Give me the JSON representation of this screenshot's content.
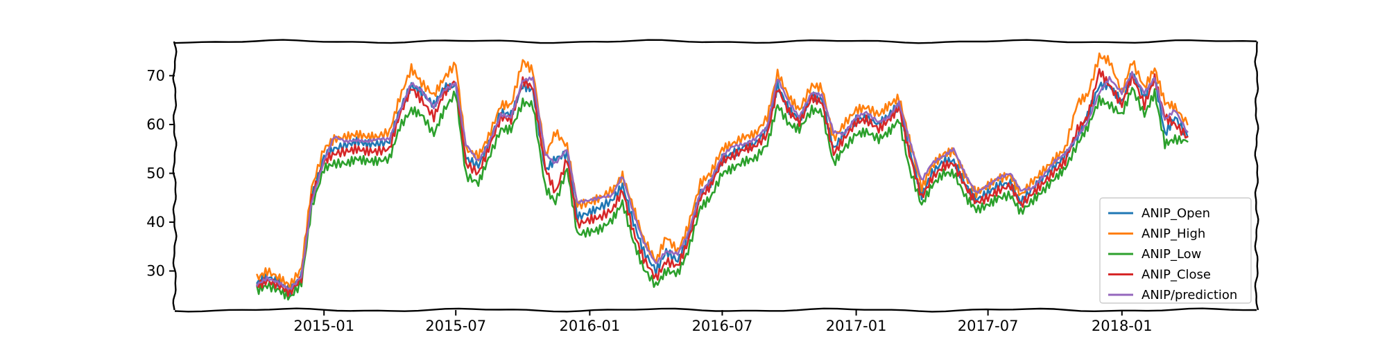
{
  "chart_data": {
    "type": "line",
    "title": "",
    "xlabel": "",
    "ylabel": "",
    "x_tick_labels": [
      "2015-01",
      "2015-07",
      "2016-01",
      "2016-07",
      "2017-01",
      "2017-07",
      "2018-01"
    ],
    "x_ticks": [
      "2015-01-01",
      "2015-07-01",
      "2016-01-01",
      "2016-07-01",
      "2017-01-01",
      "2017-07-01",
      "2018-01-01"
    ],
    "xlim": [
      "2014-06-10",
      "2018-07-05"
    ],
    "y_ticks": [
      30,
      40,
      50,
      60,
      70
    ],
    "ylim": [
      22,
      77
    ],
    "grid": false,
    "legend_position": "lower-right",
    "dates": [
      "2014-10-01",
      "2014-10-15",
      "2014-11-01",
      "2014-11-15",
      "2014-12-01",
      "2014-12-15",
      "2015-01-01",
      "2015-01-15",
      "2015-02-01",
      "2015-02-15",
      "2015-03-01",
      "2015-03-15",
      "2015-04-01",
      "2015-04-15",
      "2015-05-01",
      "2015-05-15",
      "2015-06-01",
      "2015-06-15",
      "2015-07-01",
      "2015-07-15",
      "2015-08-01",
      "2015-08-15",
      "2015-09-01",
      "2015-09-15",
      "2015-10-01",
      "2015-10-15",
      "2015-11-01",
      "2015-11-15",
      "2015-12-01",
      "2015-12-15",
      "2016-01-01",
      "2016-01-15",
      "2016-02-01",
      "2016-02-15",
      "2016-03-01",
      "2016-03-15",
      "2016-04-01",
      "2016-04-15",
      "2016-05-01",
      "2016-05-15",
      "2016-06-01",
      "2016-06-15",
      "2016-07-01",
      "2016-07-15",
      "2016-08-01",
      "2016-08-15",
      "2016-09-01",
      "2016-09-15",
      "2016-10-01",
      "2016-10-15",
      "2016-11-01",
      "2016-11-15",
      "2016-12-01",
      "2016-12-15",
      "2017-01-01",
      "2017-01-15",
      "2017-02-01",
      "2017-02-15",
      "2017-03-01",
      "2017-03-15",
      "2017-04-01",
      "2017-04-15",
      "2017-05-01",
      "2017-05-15",
      "2017-06-01",
      "2017-06-15",
      "2017-07-01",
      "2017-07-15",
      "2017-08-01",
      "2017-08-15",
      "2017-09-01",
      "2017-09-15",
      "2017-10-01",
      "2017-10-15",
      "2017-11-01",
      "2017-11-15",
      "2017-12-01",
      "2017-12-15",
      "2018-01-01",
      "2018-01-15",
      "2018-02-01",
      "2018-02-15",
      "2018-03-01",
      "2018-03-15",
      "2018-04-01"
    ],
    "series": [
      {
        "name": "ANIP_Open",
        "color": "#1f77b4",
        "values": [
          27.5,
          28.8,
          27.6,
          26.0,
          29.0,
          45.0,
          53.5,
          55.0,
          55.8,
          56.5,
          56.0,
          56.0,
          56.5,
          63.0,
          68.0,
          66.5,
          64.0,
          67.5,
          68.0,
          53.0,
          51.5,
          56.0,
          62.5,
          62.0,
          68.0,
          67.0,
          50.5,
          53.0,
          54.0,
          41.0,
          42.0,
          43.0,
          44.5,
          47.5,
          40.0,
          34.0,
          30.0,
          34.0,
          32.0,
          37.0,
          46.0,
          48.0,
          53.0,
          54.0,
          55.5,
          56.0,
          59.0,
          68.0,
          63.0,
          61.0,
          66.0,
          65.0,
          55.0,
          58.0,
          61.0,
          61.5,
          60.0,
          62.0,
          64.0,
          55.0,
          45.5,
          50.0,
          52.5,
          52.5,
          47.5,
          44.5,
          46.0,
          47.5,
          48.0,
          44.0,
          47.0,
          49.0,
          51.5,
          53.5,
          57.5,
          62.0,
          68.0,
          68.0,
          64.5,
          70.5,
          65.5,
          69.5,
          58.0,
          61.5,
          57.5
        ]
      },
      {
        "name": "ANIP_High",
        "color": "#ff7f0e",
        "values": [
          28.5,
          30.0,
          28.5,
          27.0,
          30.5,
          47.0,
          55.0,
          57.0,
          57.5,
          58.0,
          57.5,
          57.5,
          58.5,
          65.5,
          71.5,
          68.5,
          66.0,
          69.5,
          72.5,
          55.0,
          53.5,
          57.5,
          64.0,
          64.0,
          73.0,
          71.0,
          53.5,
          58.5,
          55.5,
          43.5,
          44.0,
          45.0,
          46.5,
          49.5,
          43.0,
          36.5,
          32.0,
          37.0,
          34.0,
          39.0,
          48.0,
          50.0,
          55.0,
          56.0,
          57.5,
          58.0,
          61.5,
          70.5,
          65.5,
          63.0,
          68.0,
          67.5,
          57.0,
          60.0,
          63.0,
          63.5,
          62.0,
          64.0,
          65.5,
          57.0,
          47.0,
          51.5,
          54.0,
          54.5,
          49.0,
          46.0,
          47.5,
          49.0,
          49.5,
          45.5,
          48.5,
          50.5,
          53.0,
          55.0,
          64.5,
          66.0,
          74.0,
          73.0,
          66.5,
          73.0,
          67.5,
          71.5,
          64.5,
          63.5,
          60.0
        ]
      },
      {
        "name": "ANIP_Low",
        "color": "#2ca02c",
        "values": [
          26.0,
          27.0,
          26.0,
          24.5,
          27.5,
          43.0,
          51.0,
          52.0,
          52.0,
          53.0,
          52.5,
          52.5,
          53.0,
          59.5,
          63.0,
          62.0,
          58.0,
          63.0,
          66.5,
          49.5,
          48.0,
          53.0,
          59.0,
          59.0,
          64.5,
          64.0,
          47.0,
          44.0,
          51.0,
          37.5,
          38.0,
          38.5,
          40.5,
          44.0,
          36.0,
          30.5,
          27.0,
          30.0,
          29.5,
          34.0,
          43.0,
          45.0,
          50.0,
          51.0,
          52.5,
          53.0,
          56.0,
          64.0,
          60.0,
          59.0,
          63.0,
          62.5,
          52.0,
          55.0,
          58.0,
          58.5,
          57.0,
          58.5,
          61.0,
          51.0,
          43.5,
          47.5,
          50.0,
          50.0,
          45.0,
          42.5,
          43.5,
          45.0,
          45.5,
          42.0,
          44.5,
          46.5,
          49.0,
          51.0,
          56.0,
          59.5,
          65.0,
          64.0,
          62.0,
          67.5,
          62.0,
          66.5,
          56.0,
          57.0,
          56.5
        ]
      },
      {
        "name": "ANIP_Close",
        "color": "#d62728",
        "values": [
          27.0,
          28.0,
          27.0,
          25.5,
          28.5,
          45.0,
          52.5,
          54.0,
          54.5,
          55.0,
          54.5,
          54.5,
          55.0,
          62.0,
          67.5,
          65.0,
          61.5,
          66.5,
          69.0,
          52.0,
          50.0,
          55.0,
          61.5,
          61.0,
          69.0,
          67.5,
          51.0,
          46.0,
          53.0,
          39.5,
          40.5,
          41.0,
          42.5,
          46.5,
          38.0,
          32.5,
          28.5,
          32.0,
          31.0,
          36.0,
          45.0,
          47.5,
          52.5,
          53.5,
          55.0,
          55.5,
          58.0,
          67.5,
          62.5,
          60.5,
          65.5,
          64.5,
          54.0,
          57.0,
          60.5,
          61.0,
          59.0,
          61.0,
          63.5,
          54.0,
          45.0,
          49.0,
          51.5,
          52.0,
          47.0,
          44.0,
          45.0,
          46.5,
          47.5,
          43.5,
          46.0,
          48.0,
          50.5,
          52.5,
          59.0,
          61.5,
          71.0,
          68.0,
          64.0,
          70.0,
          64.0,
          69.5,
          61.5,
          60.0,
          57.5
        ]
      },
      {
        "name": "ANIP/prediction",
        "color": "#9467bd",
        "values": [
          27.2,
          28.5,
          27.5,
          26.2,
          28.8,
          44.0,
          52.5,
          57.5,
          56.5,
          56.8,
          56.5,
          57.0,
          57.0,
          62.5,
          68.5,
          67.0,
          63.5,
          67.0,
          68.5,
          56.0,
          52.5,
          56.0,
          62.0,
          61.5,
          69.0,
          69.5,
          54.0,
          52.0,
          55.0,
          44.0,
          44.5,
          45.0,
          45.5,
          49.5,
          42.0,
          36.0,
          31.5,
          34.0,
          33.5,
          37.5,
          46.0,
          48.5,
          53.5,
          55.5,
          56.0,
          57.0,
          59.5,
          69.5,
          64.5,
          61.5,
          66.5,
          66.0,
          58.5,
          58.0,
          61.5,
          62.5,
          60.5,
          61.5,
          64.5,
          57.0,
          48.5,
          52.0,
          53.5,
          55.0,
          49.5,
          46.0,
          47.5,
          49.0,
          50.0,
          46.5,
          47.0,
          49.5,
          52.5,
          54.0,
          57.5,
          60.5,
          66.5,
          69.5,
          66.5,
          70.5,
          66.5,
          69.5,
          61.0,
          63.0,
          58.5
        ]
      }
    ]
  }
}
